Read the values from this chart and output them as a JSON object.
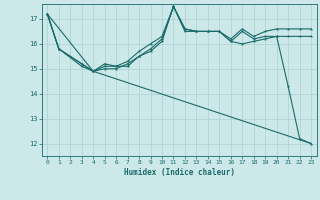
{
  "title": "",
  "xlabel": "Humidex (Indice chaleur)",
  "bg_color": "#cce8e8",
  "grid_color": "#aad0d0",
  "line_color": "#1a6b6b",
  "xlim": [
    -0.5,
    23.5
  ],
  "ylim": [
    11.5,
    17.6
  ],
  "yticks": [
    12,
    13,
    14,
    15,
    16,
    17
  ],
  "xticks": [
    0,
    1,
    2,
    3,
    4,
    5,
    6,
    7,
    8,
    9,
    10,
    11,
    12,
    13,
    14,
    15,
    16,
    17,
    18,
    19,
    20,
    21,
    22,
    23
  ],
  "line1_x": [
    0,
    1,
    3,
    4,
    5,
    6,
    7,
    8,
    9,
    10,
    11,
    12,
    13,
    14,
    15,
    16,
    17,
    18,
    19,
    20,
    21,
    22,
    23
  ],
  "line1_y": [
    17.2,
    15.8,
    15.2,
    14.9,
    15.2,
    15.1,
    15.1,
    15.5,
    15.8,
    16.2,
    17.5,
    16.6,
    16.5,
    16.5,
    16.5,
    16.1,
    16.5,
    16.2,
    16.3,
    16.3,
    14.3,
    12.2,
    12.0
  ],
  "line2_x": [
    0,
    1,
    3,
    4,
    5,
    6,
    7,
    8,
    9,
    10,
    11,
    12,
    13,
    14,
    15,
    16,
    17,
    18,
    19,
    20,
    21,
    22,
    23
  ],
  "line2_y": [
    17.2,
    15.8,
    15.2,
    14.9,
    15.1,
    15.1,
    15.3,
    15.7,
    16.0,
    16.3,
    17.5,
    16.6,
    16.5,
    16.5,
    16.5,
    16.2,
    16.6,
    16.3,
    16.5,
    16.6,
    16.6,
    16.6,
    16.6
  ],
  "line3_x": [
    0,
    1,
    3,
    4,
    5,
    6,
    7,
    8,
    9,
    10,
    11,
    12,
    13,
    14,
    15,
    16,
    17,
    18,
    19,
    20,
    21,
    22,
    23
  ],
  "line3_y": [
    17.2,
    15.8,
    15.1,
    14.9,
    15.0,
    15.0,
    15.2,
    15.5,
    15.7,
    16.1,
    17.5,
    16.5,
    16.5,
    16.5,
    16.5,
    16.1,
    16.0,
    16.1,
    16.2,
    16.3,
    16.3,
    16.3,
    16.3
  ],
  "line4_x": [
    0,
    4,
    23
  ],
  "line4_y": [
    17.2,
    14.9,
    12.0
  ]
}
